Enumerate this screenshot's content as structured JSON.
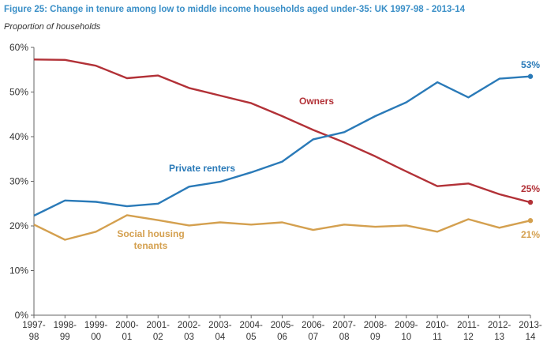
{
  "figure": {
    "title": "Figure 25:  Change in tenure among low to middle income households aged under-35: UK 1997-98 - 2013-14",
    "subtitle": "Proportion of households"
  },
  "colors": {
    "owners": "#b23137",
    "private_renters": "#2a7ab8",
    "social": "#d4a04f",
    "axis": "#666666"
  },
  "chart_data": {
    "type": "line",
    "title": "Figure 25:  Change in tenure among low to middle income households aged under-35: UK 1997-98 - 2013-14",
    "ylabel": "Proportion of households",
    "xlabel": "",
    "ylim": [
      0,
      60
    ],
    "y_ticks": [
      "0%",
      "10%",
      "20%",
      "30%",
      "40%",
      "50%",
      "60%"
    ],
    "categories": [
      [
        "1997-",
        "98"
      ],
      [
        "1998-",
        "99"
      ],
      [
        "1999-",
        "00"
      ],
      [
        "2000-",
        "01"
      ],
      [
        "2001-",
        "02"
      ],
      [
        "2002-",
        "03"
      ],
      [
        "2003-",
        "04"
      ],
      [
        "2004-",
        "05"
      ],
      [
        "2005-",
        "06"
      ],
      [
        "2006-",
        "07"
      ],
      [
        "2007-",
        "08"
      ],
      [
        "2008-",
        "09"
      ],
      [
        "2009-",
        "10"
      ],
      [
        "2010-",
        "11"
      ],
      [
        "2011-",
        "12"
      ],
      [
        "2012-",
        "13"
      ],
      [
        "2013-",
        "14"
      ]
    ],
    "grid": false,
    "legend": "inline labels",
    "series": [
      {
        "key": "owners",
        "name": "Owners",
        "values": [
          57.3,
          57.2,
          55.9,
          53.1,
          53.7,
          50.9,
          49.2,
          47.5,
          44.6,
          41.5,
          38.7,
          35.6,
          32.2,
          28.9,
          29.5,
          27.1,
          25.3
        ],
        "end_label": "25%"
      },
      {
        "key": "private_renters",
        "name": "Private renters",
        "values": [
          22.3,
          25.7,
          25.4,
          24.4,
          25.0,
          28.8,
          29.9,
          32.0,
          34.4,
          39.4,
          41.0,
          44.6,
          47.7,
          52.2,
          48.8,
          53.0,
          53.5
        ],
        "end_label": "53%"
      },
      {
        "key": "social",
        "name": [
          "Social housing",
          "tenants"
        ],
        "values": [
          20.3,
          16.9,
          18.7,
          22.4,
          21.3,
          20.1,
          20.8,
          20.3,
          20.8,
          19.1,
          20.3,
          19.8,
          20.1,
          18.7,
          21.5,
          19.6,
          21.2
        ],
        "end_label": "21%"
      }
    ]
  }
}
